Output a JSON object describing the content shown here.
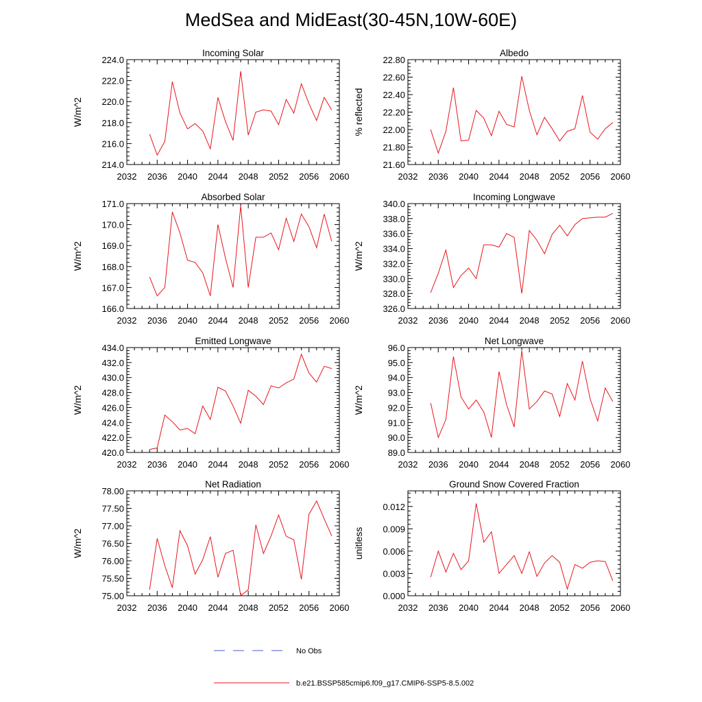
{
  "title": "MedSea and MidEast(30-45N,10W-60E)",
  "colors": {
    "model": "#e8141c",
    "obs": "#4a5bd1",
    "axis": "#000000"
  },
  "legend": {
    "obs_label": "No Obs",
    "model_label": "b.e21.BSSP585cmip6.f09_g17.CMIP6-SSP5-8.5.002"
  },
  "chart_data": [
    {
      "type": "line",
      "title": "Incoming Solar",
      "ylabel": "W/m^2",
      "xlim": [
        2032,
        2060
      ],
      "ylim": [
        214.0,
        224.0
      ],
      "xticks": [
        "2032",
        "2036",
        "2040",
        "2044",
        "2048",
        "2052",
        "2056",
        "2060"
      ],
      "yticks": [
        "214.0",
        "216.0",
        "218.0",
        "220.0",
        "222.0",
        "224.0"
      ],
      "x": [
        2035,
        2036,
        2037,
        2038,
        2039,
        2040,
        2041,
        2042,
        2043,
        2044,
        2045,
        2046,
        2047,
        2048,
        2049,
        2050,
        2051,
        2052,
        2053,
        2054,
        2055,
        2056,
        2057,
        2058,
        2059
      ],
      "values": [
        216.9,
        214.9,
        216.2,
        221.9,
        218.9,
        217.4,
        217.9,
        217.2,
        215.5,
        220.4,
        218.1,
        216.3,
        222.9,
        216.8,
        219.0,
        219.2,
        219.1,
        217.8,
        220.2,
        218.9,
        221.7,
        219.8,
        218.2,
        220.4,
        219.2
      ]
    },
    {
      "type": "line",
      "title": "Albedo",
      "ylabel": "% reflected",
      "xlim": [
        2032,
        2060
      ],
      "ylim": [
        21.6,
        22.8
      ],
      "xticks": [
        "2032",
        "2036",
        "2040",
        "2044",
        "2048",
        "2052",
        "2056",
        "2060"
      ],
      "yticks": [
        "21.60",
        "21.80",
        "22.00",
        "22.20",
        "22.40",
        "22.60",
        "22.80"
      ],
      "x": [
        2035,
        2036,
        2037,
        2038,
        2039,
        2040,
        2041,
        2042,
        2043,
        2044,
        2045,
        2046,
        2047,
        2048,
        2049,
        2050,
        2051,
        2052,
        2053,
        2054,
        2055,
        2056,
        2057,
        2058,
        2059
      ],
      "values": [
        22.0,
        21.73,
        21.98,
        22.48,
        21.87,
        21.88,
        22.22,
        22.13,
        21.93,
        22.21,
        22.06,
        22.03,
        22.61,
        22.22,
        21.94,
        22.14,
        22.01,
        21.87,
        21.98,
        22.01,
        22.39,
        21.97,
        21.89,
        22.01,
        22.08
      ]
    },
    {
      "type": "line",
      "title": "Absorbed Solar",
      "ylabel": "W/m^2",
      "xlim": [
        2032,
        2060
      ],
      "ylim": [
        166.0,
        171.0
      ],
      "xticks": [
        "2032",
        "2036",
        "2040",
        "2044",
        "2048",
        "2052",
        "2056",
        "2060"
      ],
      "yticks": [
        "166.0",
        "167.0",
        "168.0",
        "169.0",
        "170.0",
        "171.0"
      ],
      "x": [
        2035,
        2036,
        2037,
        2038,
        2039,
        2040,
        2041,
        2042,
        2043,
        2044,
        2045,
        2046,
        2047,
        2048,
        2049,
        2050,
        2051,
        2052,
        2053,
        2054,
        2055,
        2056,
        2057,
        2058,
        2059
      ],
      "values": [
        167.5,
        166.6,
        167.0,
        170.6,
        169.6,
        168.3,
        168.2,
        167.7,
        166.6,
        170.0,
        168.4,
        167.0,
        170.9,
        167.0,
        169.4,
        169.4,
        169.6,
        168.8,
        170.3,
        169.2,
        170.5,
        169.9,
        168.9,
        170.5,
        169.2
      ]
    },
    {
      "type": "line",
      "title": "Incoming Longwave",
      "ylabel": "W/m^2",
      "xlim": [
        2032,
        2060
      ],
      "ylim": [
        326.0,
        340.0
      ],
      "xticks": [
        "2032",
        "2036",
        "2040",
        "2044",
        "2048",
        "2052",
        "2056",
        "2060"
      ],
      "yticks": [
        "326.0",
        "328.0",
        "330.0",
        "332.0",
        "334.0",
        "336.0",
        "338.0",
        "340.0"
      ],
      "x": [
        2035,
        2036,
        2037,
        2038,
        2039,
        2040,
        2041,
        2042,
        2043,
        2044,
        2045,
        2046,
        2047,
        2048,
        2049,
        2050,
        2051,
        2052,
        2053,
        2054,
        2055,
        2056,
        2057,
        2058,
        2059
      ],
      "values": [
        328.1,
        330.7,
        333.8,
        328.8,
        330.4,
        331.4,
        330.0,
        334.5,
        334.5,
        334.2,
        336.0,
        335.5,
        328.0,
        336.4,
        335.1,
        333.3,
        335.9,
        337.1,
        335.7,
        337.2,
        338.0,
        338.1,
        338.2,
        338.2,
        338.7
      ]
    },
    {
      "type": "line",
      "title": "Emitted Longwave",
      "ylabel": "W/m^2",
      "xlim": [
        2032,
        2060
      ],
      "ylim": [
        420.0,
        434.0
      ],
      "xticks": [
        "2032",
        "2036",
        "2040",
        "2044",
        "2048",
        "2052",
        "2056",
        "2060"
      ],
      "yticks": [
        "420.0",
        "422.0",
        "424.0",
        "426.0",
        "428.0",
        "430.0",
        "432.0",
        "434.0"
      ],
      "x": [
        2035,
        2036,
        2037,
        2038,
        2039,
        2040,
        2041,
        2042,
        2043,
        2044,
        2045,
        2046,
        2047,
        2048,
        2049,
        2050,
        2051,
        2052,
        2053,
        2054,
        2055,
        2056,
        2057,
        2058,
        2059
      ],
      "values": [
        420.4,
        420.6,
        425.0,
        424.1,
        423.0,
        423.2,
        422.5,
        426.2,
        424.4,
        428.7,
        428.2,
        426.2,
        423.9,
        428.3,
        427.5,
        426.4,
        428.9,
        428.6,
        429.3,
        429.8,
        433.1,
        430.6,
        429.4,
        431.5,
        431.2
      ]
    },
    {
      "type": "line",
      "title": "Net Longwave",
      "ylabel": "W/m^2",
      "xlim": [
        2032,
        2060
      ],
      "ylim": [
        89.0,
        96.0
      ],
      "xticks": [
        "2032",
        "2036",
        "2040",
        "2044",
        "2048",
        "2052",
        "2056",
        "2060"
      ],
      "yticks": [
        "89.0",
        "90.0",
        "91.0",
        "92.0",
        "93.0",
        "94.0",
        "95.0",
        "96.0"
      ],
      "x": [
        2035,
        2036,
        2037,
        2038,
        2039,
        2040,
        2041,
        2042,
        2043,
        2044,
        2045,
        2046,
        2047,
        2048,
        2049,
        2050,
        2051,
        2052,
        2053,
        2054,
        2055,
        2056,
        2057,
        2058,
        2059
      ],
      "values": [
        92.3,
        90.0,
        91.2,
        95.4,
        92.7,
        91.9,
        92.5,
        91.7,
        90.0,
        94.4,
        92.2,
        90.7,
        95.8,
        91.9,
        92.4,
        93.1,
        92.9,
        91.4,
        93.6,
        92.5,
        95.1,
        92.6,
        91.1,
        93.3,
        92.4
      ]
    },
    {
      "type": "line",
      "title": "Net Radiation",
      "ylabel": "W/m^2",
      "xlim": [
        2032,
        2060
      ],
      "ylim": [
        75.0,
        78.0
      ],
      "xticks": [
        "2032",
        "2036",
        "2040",
        "2044",
        "2048",
        "2052",
        "2056",
        "2060"
      ],
      "yticks": [
        "75.00",
        "75.50",
        "76.00",
        "76.50",
        "77.00",
        "77.50",
        "78.00"
      ],
      "x": [
        2035,
        2036,
        2037,
        2038,
        2039,
        2040,
        2041,
        2042,
        2043,
        2044,
        2045,
        2046,
        2047,
        2048,
        2049,
        2050,
        2051,
        2052,
        2053,
        2054,
        2055,
        2056,
        2057,
        2058,
        2059
      ],
      "values": [
        75.17,
        76.64,
        75.86,
        75.23,
        76.86,
        76.43,
        75.62,
        76.03,
        76.69,
        75.53,
        76.21,
        76.3,
        75.0,
        75.17,
        77.03,
        76.21,
        76.71,
        77.31,
        76.7,
        76.6,
        75.47,
        77.33,
        77.71,
        77.2,
        76.71
      ]
    },
    {
      "type": "line",
      "title": "Ground Snow Covered Fraction",
      "ylabel": "unitless",
      "xlim": [
        2032,
        2060
      ],
      "ylim": [
        0.0,
        0.0141
      ],
      "xticks": [
        "2032",
        "2036",
        "2040",
        "2044",
        "2048",
        "2052",
        "2056",
        "2060"
      ],
      "yticks": [
        "0.000",
        "0.003",
        "0.006",
        "0.009",
        "0.012"
      ],
      "x": [
        2035,
        2036,
        2037,
        2038,
        2039,
        2040,
        2041,
        2042,
        2043,
        2044,
        2045,
        2046,
        2047,
        2048,
        2049,
        2050,
        2051,
        2052,
        2053,
        2054,
        2055,
        2056,
        2057,
        2058,
        2059
      ],
      "values": [
        0.0025,
        0.006,
        0.0032,
        0.0057,
        0.0035,
        0.0047,
        0.0124,
        0.0072,
        0.0086,
        0.003,
        0.0042,
        0.0054,
        0.003,
        0.0059,
        0.0026,
        0.0044,
        0.0054,
        0.0045,
        0.0009,
        0.0042,
        0.0037,
        0.0045,
        0.0047,
        0.0046,
        0.002
      ]
    }
  ]
}
